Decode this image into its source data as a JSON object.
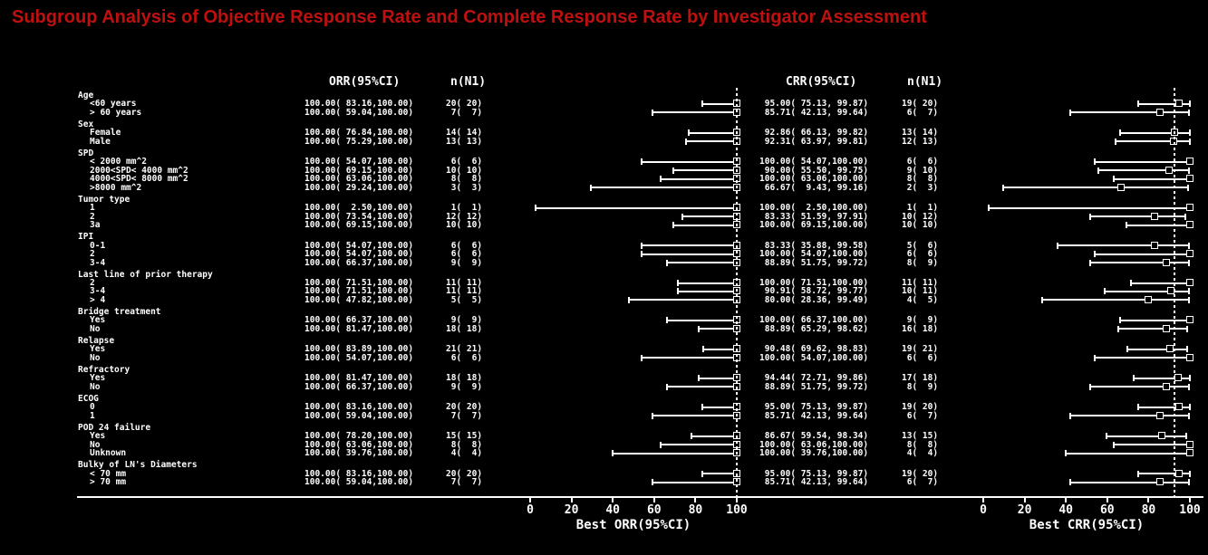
{
  "title": {
    "text": "Subgroup Analysis of Objective Response Rate and Complete Response Rate by Investigator Assessment"
  },
  "colors": {
    "background": "#000000",
    "text": "#ffffff",
    "title_red": "#bf1010"
  },
  "chart_data": {
    "type": "forest",
    "title": "Subgroup Analysis of Objective Response Rate and Complete Response Rate by Investigator Assessment",
    "legend": "none",
    "grid": "off",
    "panels": [
      {
        "id": "orr",
        "value_header": "ORR(95%CI)",
        "n_header": "n(N1)",
        "xlabel": "Best ORR(95%CI)",
        "xticks": [
          0,
          20,
          40,
          60,
          80,
          100
        ],
        "xlim": [
          0,
          100
        ],
        "ref_line": 100
      },
      {
        "id": "crr",
        "value_header": "CRR(95%CI)",
        "n_header": "n(N1)",
        "xlabel": "Best CRR(95%CI)",
        "xticks": [
          0,
          20,
          40,
          60,
          80,
          100
        ],
        "xlim": [
          0,
          100
        ],
        "ref_line": 92.59
      }
    ],
    "groups": [
      {
        "label": "Age",
        "rows": [
          {
            "label": "<60 years",
            "orr": {
              "text": "100.00( 83.16,100.00)",
              "n": "20( 20)",
              "est": 100,
              "lo": 83.16,
              "hi": 100
            },
            "crr": {
              "text": " 95.00( 75.13, 99.87)",
              "n": "19( 20)",
              "est": 95.0,
              "lo": 75.13,
              "hi": 99.87
            }
          },
          {
            "label": "> 60 years",
            "orr": {
              "text": "100.00( 59.04,100.00)",
              "n": " 7(  7)",
              "est": 100,
              "lo": 59.04,
              "hi": 100
            },
            "crr": {
              "text": " 85.71( 42.13, 99.64)",
              "n": " 6(  7)",
              "est": 85.71,
              "lo": 42.13,
              "hi": 99.64
            }
          }
        ]
      },
      {
        "label": "Sex",
        "rows": [
          {
            "label": "Female",
            "orr": {
              "text": "100.00( 76.84,100.00)",
              "n": "14( 14)",
              "est": 100,
              "lo": 76.84,
              "hi": 100
            },
            "crr": {
              "text": " 92.86( 66.13, 99.82)",
              "n": "13( 14)",
              "est": 92.86,
              "lo": 66.13,
              "hi": 99.82
            }
          },
          {
            "label": "Male",
            "orr": {
              "text": "100.00( 75.29,100.00)",
              "n": "13( 13)",
              "est": 100,
              "lo": 75.29,
              "hi": 100
            },
            "crr": {
              "text": " 92.31( 63.97, 99.81)",
              "n": "12( 13)",
              "est": 92.31,
              "lo": 63.97,
              "hi": 99.81
            }
          }
        ]
      },
      {
        "label": "SPD",
        "rows": [
          {
            "label": "< 2000 mm^2",
            "orr": {
              "text": "100.00( 54.07,100.00)",
              "n": " 6(  6)",
              "est": 100,
              "lo": 54.07,
              "hi": 100
            },
            "crr": {
              "text": "100.00( 54.07,100.00)",
              "n": " 6(  6)",
              "est": 100,
              "lo": 54.07,
              "hi": 100
            }
          },
          {
            "label": "2000<SPD< 4000 mm^2",
            "orr": {
              "text": "100.00( 69.15,100.00)",
              "n": "10( 10)",
              "est": 100,
              "lo": 69.15,
              "hi": 100
            },
            "crr": {
              "text": " 90.00( 55.50, 99.75)",
              "n": " 9( 10)",
              "est": 90.0,
              "lo": 55.5,
              "hi": 99.75
            }
          },
          {
            "label": "4000<SPD< 8000 mm^2",
            "orr": {
              "text": "100.00( 63.06,100.00)",
              "n": " 8(  8)",
              "est": 100,
              "lo": 63.06,
              "hi": 100
            },
            "crr": {
              "text": "100.00( 63.06,100.00)",
              "n": " 8(  8)",
              "est": 100,
              "lo": 63.06,
              "hi": 100
            }
          },
          {
            "label": ">8000 mm^2",
            "orr": {
              "text": "100.00( 29.24,100.00)",
              "n": " 3(  3)",
              "est": 100,
              "lo": 29.24,
              "hi": 100
            },
            "crr": {
              "text": " 66.67(  9.43, 99.16)",
              "n": " 2(  3)",
              "est": 66.67,
              "lo": 9.43,
              "hi": 99.16
            }
          }
        ]
      },
      {
        "label": "Tumor type",
        "rows": [
          {
            "label": "1",
            "orr": {
              "text": "100.00(  2.50,100.00)",
              "n": " 1(  1)",
              "est": 100,
              "lo": 2.5,
              "hi": 100
            },
            "crr": {
              "text": "100.00(  2.50,100.00)",
              "n": " 1(  1)",
              "est": 100,
              "lo": 2.5,
              "hi": 100
            }
          },
          {
            "label": "2",
            "orr": {
              "text": "100.00( 73.54,100.00)",
              "n": "12( 12)",
              "est": 100,
              "lo": 73.54,
              "hi": 100
            },
            "crr": {
              "text": " 83.33( 51.59, 97.91)",
              "n": "10( 12)",
              "est": 83.33,
              "lo": 51.59,
              "hi": 97.91
            }
          },
          {
            "label": "3a",
            "orr": {
              "text": "100.00( 69.15,100.00)",
              "n": "10( 10)",
              "est": 100,
              "lo": 69.15,
              "hi": 100
            },
            "crr": {
              "text": "100.00( 69.15,100.00)",
              "n": "10( 10)",
              "est": 100,
              "lo": 69.15,
              "hi": 100
            }
          }
        ]
      },
      {
        "label": "IPI",
        "rows": [
          {
            "label": "0-1",
            "orr": {
              "text": "100.00( 54.07,100.00)",
              "n": " 6(  6)",
              "est": 100,
              "lo": 54.07,
              "hi": 100
            },
            "crr": {
              "text": " 83.33( 35.88, 99.58)",
              "n": " 5(  6)",
              "est": 83.33,
              "lo": 35.88,
              "hi": 99.58
            }
          },
          {
            "label": "2",
            "orr": {
              "text": "100.00( 54.07,100.00)",
              "n": " 6(  6)",
              "est": 100,
              "lo": 54.07,
              "hi": 100
            },
            "crr": {
              "text": "100.00( 54.07,100.00)",
              "n": " 6(  6)",
              "est": 100,
              "lo": 54.07,
              "hi": 100
            }
          },
          {
            "label": "3-4",
            "orr": {
              "text": "100.00( 66.37,100.00)",
              "n": " 9(  9)",
              "est": 100,
              "lo": 66.37,
              "hi": 100
            },
            "crr": {
              "text": " 88.89( 51.75, 99.72)",
              "n": " 8(  9)",
              "est": 88.89,
              "lo": 51.75,
              "hi": 99.72
            }
          }
        ]
      },
      {
        "label": "Last line of prior therapy",
        "rows": [
          {
            "label": "2",
            "orr": {
              "text": "100.00( 71.51,100.00)",
              "n": "11( 11)",
              "est": 100,
              "lo": 71.51,
              "hi": 100
            },
            "crr": {
              "text": "100.00( 71.51,100.00)",
              "n": "11( 11)",
              "est": 100,
              "lo": 71.51,
              "hi": 100
            }
          },
          {
            "label": "3-4",
            "orr": {
              "text": "100.00( 71.51,100.00)",
              "n": "11( 11)",
              "est": 100,
              "lo": 71.51,
              "hi": 100
            },
            "crr": {
              "text": " 90.91( 58.72, 99.77)",
              "n": "10( 11)",
              "est": 90.91,
              "lo": 58.72,
              "hi": 99.77
            }
          },
          {
            "label": "> 4",
            "orr": {
              "text": "100.00( 47.82,100.00)",
              "n": " 5(  5)",
              "est": 100,
              "lo": 47.82,
              "hi": 100
            },
            "crr": {
              "text": " 80.00( 28.36, 99.49)",
              "n": " 4(  5)",
              "est": 80.0,
              "lo": 28.36,
              "hi": 99.49
            }
          }
        ]
      },
      {
        "label": "Bridge treatment",
        "rows": [
          {
            "label": "Yes",
            "orr": {
              "text": "100.00( 66.37,100.00)",
              "n": " 9(  9)",
              "est": 100,
              "lo": 66.37,
              "hi": 100
            },
            "crr": {
              "text": "100.00( 66.37,100.00)",
              "n": " 9(  9)",
              "est": 100,
              "lo": 66.37,
              "hi": 100
            }
          },
          {
            "label": "No",
            "orr": {
              "text": "100.00( 81.47,100.00)",
              "n": "18( 18)",
              "est": 100,
              "lo": 81.47,
              "hi": 100
            },
            "crr": {
              "text": " 88.89( 65.29, 98.62)",
              "n": "16( 18)",
              "est": 88.89,
              "lo": 65.29,
              "hi": 98.62
            }
          }
        ]
      },
      {
        "label": "Relapse",
        "rows": [
          {
            "label": "Yes",
            "orr": {
              "text": "100.00( 83.89,100.00)",
              "n": "21( 21)",
              "est": 100,
              "lo": 83.89,
              "hi": 100
            },
            "crr": {
              "text": " 90.48( 69.62, 98.83)",
              "n": "19( 21)",
              "est": 90.48,
              "lo": 69.62,
              "hi": 98.83
            }
          },
          {
            "label": "No",
            "orr": {
              "text": "100.00( 54.07,100.00)",
              "n": " 6(  6)",
              "est": 100,
              "lo": 54.07,
              "hi": 100
            },
            "crr": {
              "text": "100.00( 54.07,100.00)",
              "n": " 6(  6)",
              "est": 100,
              "lo": 54.07,
              "hi": 100
            }
          }
        ]
      },
      {
        "label": "Refractory",
        "rows": [
          {
            "label": "Yes",
            "orr": {
              "text": "100.00( 81.47,100.00)",
              "n": "18( 18)",
              "est": 100,
              "lo": 81.47,
              "hi": 100
            },
            "crr": {
              "text": " 94.44( 72.71, 99.86)",
              "n": "17( 18)",
              "est": 94.44,
              "lo": 72.71,
              "hi": 99.86
            }
          },
          {
            "label": "No",
            "orr": {
              "text": "100.00( 66.37,100.00)",
              "n": " 9(  9)",
              "est": 100,
              "lo": 66.37,
              "hi": 100
            },
            "crr": {
              "text": " 88.89( 51.75, 99.72)",
              "n": " 8(  9)",
              "est": 88.89,
              "lo": 51.75,
              "hi": 99.72
            }
          }
        ]
      },
      {
        "label": "ECOG",
        "rows": [
          {
            "label": "0",
            "orr": {
              "text": "100.00( 83.16,100.00)",
              "n": "20( 20)",
              "est": 100,
              "lo": 83.16,
              "hi": 100
            },
            "crr": {
              "text": " 95.00( 75.13, 99.87)",
              "n": "19( 20)",
              "est": 95.0,
              "lo": 75.13,
              "hi": 99.87
            }
          },
          {
            "label": "1",
            "orr": {
              "text": "100.00( 59.04,100.00)",
              "n": " 7(  7)",
              "est": 100,
              "lo": 59.04,
              "hi": 100
            },
            "crr": {
              "text": " 85.71( 42.13, 99.64)",
              "n": " 6(  7)",
              "est": 85.71,
              "lo": 42.13,
              "hi": 99.64
            }
          }
        ]
      },
      {
        "label": "POD 24 failure",
        "rows": [
          {
            "label": "Yes",
            "orr": {
              "text": "100.00( 78.20,100.00)",
              "n": "15( 15)",
              "est": 100,
              "lo": 78.2,
              "hi": 100
            },
            "crr": {
              "text": " 86.67( 59.54, 98.34)",
              "n": "13( 15)",
              "est": 86.67,
              "lo": 59.54,
              "hi": 98.34
            }
          },
          {
            "label": "No",
            "orr": {
              "text": "100.00( 63.06,100.00)",
              "n": " 8(  8)",
              "est": 100,
              "lo": 63.06,
              "hi": 100
            },
            "crr": {
              "text": "100.00( 63.06,100.00)",
              "n": " 8(  8)",
              "est": 100,
              "lo": 63.06,
              "hi": 100
            }
          },
          {
            "label": "Unknown",
            "orr": {
              "text": "100.00( 39.76,100.00)",
              "n": " 4(  4)",
              "est": 100,
              "lo": 39.76,
              "hi": 100
            },
            "crr": {
              "text": "100.00( 39.76,100.00)",
              "n": " 4(  4)",
              "est": 100,
              "lo": 39.76,
              "hi": 100
            }
          }
        ]
      },
      {
        "label": "Bulky of LN's Diameters",
        "rows": [
          {
            "label": "< 70 mm",
            "orr": {
              "text": "100.00( 83.16,100.00)",
              "n": "20( 20)",
              "est": 100,
              "lo": 83.16,
              "hi": 100
            },
            "crr": {
              "text": " 95.00( 75.13, 99.87)",
              "n": "19( 20)",
              "est": 95.0,
              "lo": 75.13,
              "hi": 99.87
            }
          },
          {
            "label": "> 70 mm",
            "orr": {
              "text": "100.00( 59.04,100.00)",
              "n": " 7(  7)",
              "est": 100,
              "lo": 59.04,
              "hi": 100
            },
            "crr": {
              "text": " 85.71( 42.13, 99.64)",
              "n": " 6(  7)",
              "est": 85.71,
              "lo": 42.13,
              "hi": 99.64
            }
          }
        ]
      }
    ]
  }
}
